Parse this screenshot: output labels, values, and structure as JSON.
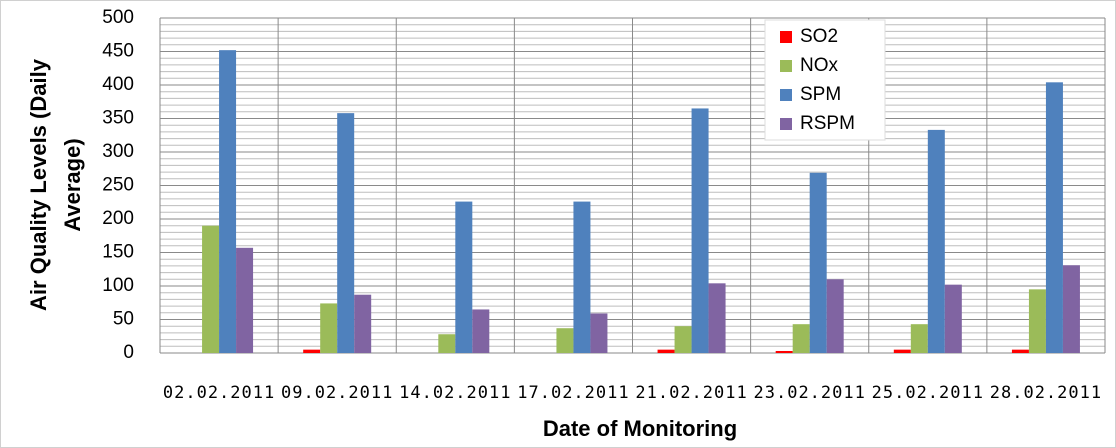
{
  "chart_data": {
    "type": "bar",
    "ylabel": [
      "Air Quality Levels (Daily",
      "Average)"
    ],
    "xlabel": "Date of Monitoring",
    "categories": [
      "02.02.2011",
      "09.02.2011",
      "14.02.2011",
      "17.02.2011",
      "21.02.2011",
      "23.02.2011",
      "25.02.2011",
      "28.02.2011"
    ],
    "series": [
      {
        "name": "SO2",
        "color": "#ff0000",
        "values": [
          0,
          5,
          0,
          0,
          5,
          3,
          5,
          5
        ]
      },
      {
        "name": "NOx",
        "color": "#9bbb59",
        "values": [
          190,
          74,
          28,
          37,
          40,
          43,
          43,
          95
        ]
      },
      {
        "name": "SPM",
        "color": "#4f81bd",
        "values": [
          452,
          358,
          226,
          226,
          365,
          269,
          333,
          404
        ]
      },
      {
        "name": "RSPM",
        "color": "#8064a2",
        "values": [
          157,
          87,
          65,
          59,
          104,
          110,
          102,
          131
        ]
      }
    ],
    "ylim": [
      0,
      500
    ],
    "yticks": [
      0,
      50,
      100,
      150,
      200,
      250,
      300,
      350,
      400,
      450,
      500
    ],
    "grid": true,
    "minor_grid_step": 10,
    "legend": "top-right"
  }
}
